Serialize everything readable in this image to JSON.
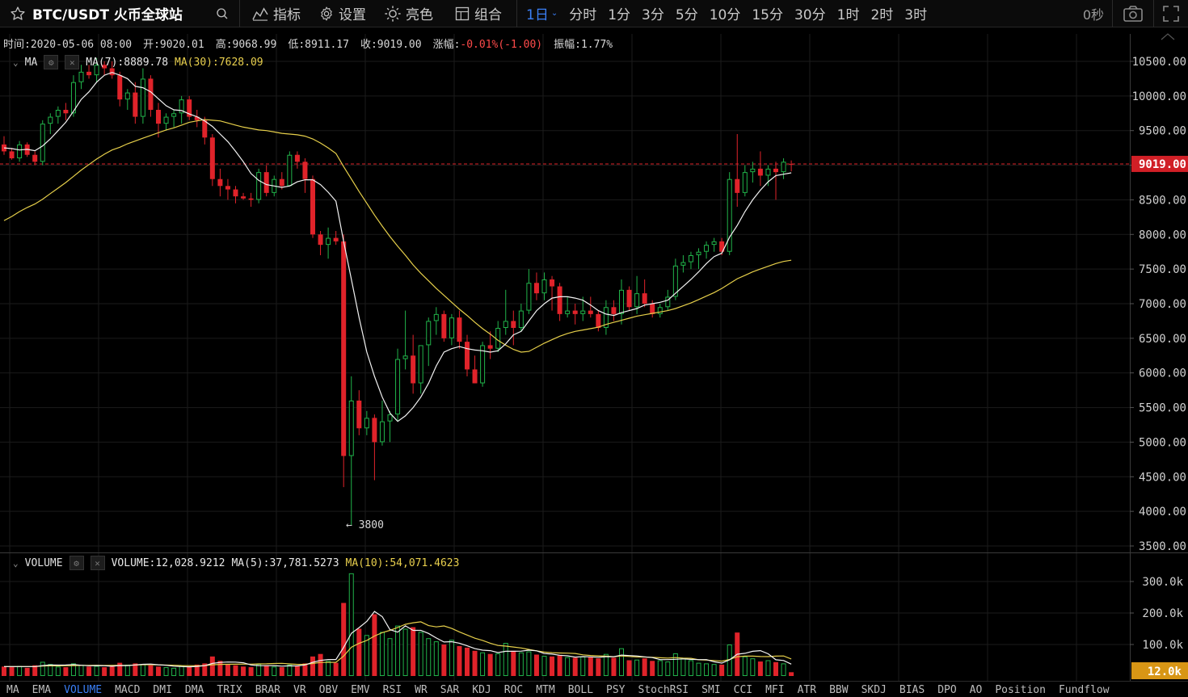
{
  "toolbar": {
    "symbol": "BTC/USDT 火币全球站",
    "indicators_label": "指标",
    "settings_label": "设置",
    "theme_label": "亮色",
    "combo_label": "组合",
    "intervals": [
      "1日",
      "分时",
      "1分",
      "3分",
      "5分",
      "10分",
      "15分",
      "30分",
      "1时",
      "2时",
      "3时"
    ],
    "active_interval": "1日",
    "seconds": "0秒"
  },
  "ohlc": {
    "time": "时间:2020-05-06 08:00",
    "open": "开:9020.01",
    "high": "高:9068.99",
    "low": "低:8911.17",
    "close": "收:9019.00",
    "change_label": "涨幅:",
    "change_value": "-0.01%(-1.00)",
    "amplitude": "振幅:1.77%"
  },
  "ma_legend": {
    "name": "MA",
    "ma7": "MA(7):8889.78",
    "ma30": "MA(30):7628.09"
  },
  "volume_legend": {
    "name": "VOLUME",
    "volume": "VOLUME:12,028.9212",
    "ma5": "MA(5):37,781.5273",
    "ma10": "MA(10):54,071.4623"
  },
  "price_axis": {
    "labels": [
      "10500.00",
      "10000.00",
      "9500.00",
      "9000.00",
      "8500.00",
      "8000.00",
      "7500.00",
      "7000.00",
      "6500.00",
      "6000.00",
      "5500.00",
      "5000.00",
      "4500.00",
      "4000.00",
      "3500.00"
    ],
    "last_price": "9019.00",
    "low_marker": "← 3800"
  },
  "volume_axis": {
    "labels": [
      "300.0k",
      "200.0k",
      "100.0k"
    ],
    "last_volume": "12.0k"
  },
  "indicators": [
    "MA",
    "EMA",
    "VOLUME",
    "MACD",
    "DMI",
    "DMA",
    "TRIX",
    "BRAR",
    "VR",
    "OBV",
    "EMV",
    "RSI",
    "WR",
    "SAR",
    "KDJ",
    "ROC",
    "MTM",
    "BOLL",
    "PSY",
    "StochRSI",
    "SMI",
    "CCI",
    "MFI",
    "ATR",
    "BBW",
    "SKDJ",
    "BIAS",
    "DPO",
    "AO",
    "Position",
    "Fundflow"
  ],
  "active_indicator": "VOLUME",
  "colors": {
    "up": "#21b34a",
    "down": "#e0232a",
    "ma7": "#f2f2f2",
    "ma30": "#e6cf4a",
    "accent": "#3a7ff6",
    "price_tag": "#d11f26",
    "volume_tag": "#d89615"
  },
  "chart_data": {
    "type": "candlestick",
    "y_range": [
      3500,
      10700
    ],
    "volume_range": [
      0,
      340000
    ],
    "last_price": 9019.0,
    "candles": [
      [
        9300,
        9420,
        9150,
        9200
      ],
      [
        9200,
        9250,
        9080,
        9100
      ],
      [
        9100,
        9350,
        9050,
        9300
      ],
      [
        9300,
        9330,
        9120,
        9150
      ],
      [
        9150,
        9200,
        9000,
        9050
      ],
      [
        9050,
        9650,
        9000,
        9600
      ],
      [
        9600,
        9750,
        9450,
        9700
      ],
      [
        9700,
        9850,
        9600,
        9800
      ],
      [
        9800,
        9900,
        9650,
        9750
      ],
      [
        9750,
        10300,
        9700,
        10200
      ],
      [
        10200,
        10450,
        10100,
        10350
      ],
      [
        10350,
        10450,
        10250,
        10300
      ],
      [
        10300,
        10550,
        10200,
        10450
      ],
      [
        10450,
        10500,
        10300,
        10400
      ],
      [
        10400,
        10500,
        10250,
        10300
      ],
      [
        10300,
        10350,
        9850,
        9950
      ],
      [
        9950,
        10100,
        9800,
        10050
      ],
      [
        10050,
        10200,
        9600,
        9700
      ],
      [
        9700,
        10400,
        9600,
        10250
      ],
      [
        10250,
        10300,
        9700,
        9800
      ],
      [
        9800,
        9900,
        9400,
        9600
      ],
      [
        9600,
        9750,
        9500,
        9700
      ],
      [
        9700,
        9800,
        9550,
        9750
      ],
      [
        9750,
        10000,
        9600,
        9950
      ],
      [
        9950,
        10000,
        9650,
        9700
      ],
      [
        9700,
        9800,
        9550,
        9650
      ],
      [
        9650,
        9700,
        9300,
        9400
      ],
      [
        9400,
        9450,
        8700,
        8800
      ],
      [
        8800,
        8950,
        8550,
        8700
      ],
      [
        8700,
        8800,
        8500,
        8650
      ],
      [
        8650,
        8700,
        8450,
        8550
      ],
      [
        8550,
        8600,
        8500,
        8520
      ],
      [
        8520,
        8600,
        8400,
        8500
      ],
      [
        8500,
        8950,
        8450,
        8900
      ],
      [
        8900,
        9000,
        8550,
        8600
      ],
      [
        8600,
        8850,
        8550,
        8800
      ],
      [
        8800,
        8900,
        8650,
        8700
      ],
      [
        8700,
        9200,
        8700,
        9150
      ],
      [
        9150,
        9200,
        8950,
        9050
      ],
      [
        9050,
        9100,
        8600,
        8800
      ],
      [
        8800,
        8850,
        7950,
        8000
      ],
      [
        8000,
        8050,
        7700,
        7850
      ],
      [
        7850,
        8100,
        7650,
        7950
      ],
      [
        7950,
        8050,
        7850,
        7900
      ],
      [
        7900,
        8000,
        4350,
        4800
      ],
      [
        4800,
        5950,
        3800,
        5600
      ],
      [
        5600,
        5750,
        5100,
        5200
      ],
      [
        5200,
        5450,
        5100,
        5350
      ],
      [
        5350,
        5400,
        4450,
        5000
      ],
      [
        5000,
        5600,
        4950,
        5300
      ],
      [
        5300,
        5450,
        5000,
        5400
      ],
      [
        5400,
        6350,
        5300,
        6200
      ],
      [
        6200,
        6900,
        6050,
        6250
      ],
      [
        6250,
        6550,
        5700,
        5850
      ],
      [
        5850,
        6350,
        5700,
        6400
      ],
      [
        6400,
        6800,
        6100,
        6750
      ],
      [
        6750,
        6950,
        6550,
        6850
      ],
      [
        6850,
        6900,
        6450,
        6500
      ],
      [
        6500,
        6850,
        6400,
        6800
      ],
      [
        6800,
        6900,
        6350,
        6450
      ],
      [
        6450,
        6550,
        5950,
        6050
      ],
      [
        6050,
        6250,
        5850,
        5850
      ],
      [
        5850,
        6450,
        5800,
        6400
      ],
      [
        6400,
        6600,
        6200,
        6350
      ],
      [
        6350,
        6750,
        6300,
        6650
      ],
      [
        6650,
        7200,
        6550,
        6750
      ],
      [
        6750,
        6900,
        6400,
        6650
      ],
      [
        6650,
        7000,
        6600,
        6900
      ],
      [
        6900,
        7500,
        6850,
        7300
      ],
      [
        7300,
        7450,
        7050,
        7150
      ],
      [
        7150,
        7450,
        7050,
        7350
      ],
      [
        7350,
        7400,
        6900,
        7250
      ],
      [
        7250,
        7300,
        6750,
        6850
      ],
      [
        6850,
        7100,
        6800,
        6900
      ],
      [
        6900,
        7000,
        6700,
        6850
      ],
      [
        6850,
        7100,
        6750,
        6900
      ],
      [
        6900,
        7100,
        6800,
        6850
      ],
      [
        6850,
        6900,
        6600,
        6650
      ],
      [
        6650,
        7050,
        6550,
        6950
      ],
      [
        6950,
        7050,
        6750,
        6850
      ],
      [
        6850,
        7350,
        6700,
        7200
      ],
      [
        7200,
        7250,
        6900,
        6950
      ],
      [
        6950,
        7400,
        6850,
        7150
      ],
      [
        7150,
        7350,
        6950,
        7000
      ],
      [
        7000,
        7050,
        6800,
        6850
      ],
      [
        6850,
        7000,
        6800,
        6950
      ],
      [
        6950,
        7200,
        6900,
        7100
      ],
      [
        7100,
        7650,
        7050,
        7550
      ],
      [
        7550,
        7700,
        7450,
        7600
      ],
      [
        7600,
        7750,
        7500,
        7700
      ],
      [
        7700,
        7800,
        7500,
        7750
      ],
      [
        7750,
        7900,
        7650,
        7850
      ],
      [
        7850,
        7950,
        7750,
        7900
      ],
      [
        7900,
        7950,
        7700,
        7750
      ],
      [
        7750,
        8900,
        7700,
        8800
      ],
      [
        8800,
        9450,
        8400,
        8600
      ],
      [
        8600,
        9000,
        8550,
        8900
      ],
      [
        8900,
        9050,
        8750,
        8950
      ],
      [
        8950,
        9200,
        8700,
        8850
      ],
      [
        8850,
        9000,
        8700,
        8950
      ],
      [
        8950,
        9050,
        8500,
        8900
      ],
      [
        8900,
        9100,
        8800,
        9050
      ],
      [
        9020.01,
        9068.99,
        8911.17,
        9019.0
      ]
    ],
    "volumes": [
      30000,
      28000,
      32000,
      26000,
      34000,
      45000,
      38000,
      30000,
      28000,
      40000,
      35000,
      30000,
      32000,
      28000,
      30000,
      42000,
      36000,
      40000,
      38000,
      34000,
      30000,
      28000,
      26000,
      32000,
      30000,
      36000,
      40000,
      62000,
      48000,
      36000,
      34000,
      30000,
      28000,
      38000,
      34000,
      30000,
      28000,
      36000,
      32000,
      40000,
      62000,
      70000,
      48000,
      42000,
      232000,
      326000,
      150000,
      130000,
      196000,
      140000,
      120000,
      160000,
      150000,
      155000,
      140000,
      120000,
      110000,
      100000,
      115000,
      95000,
      90000,
      80000,
      75000,
      70000,
      72000,
      105000,
      80000,
      75000,
      78000,
      68000,
      64000,
      62000,
      66000,
      60000,
      58000,
      62000,
      60000,
      56000,
      70000,
      58000,
      88000,
      50000,
      52000,
      56000,
      48000,
      50000,
      46000,
      72000,
      56000,
      50000,
      42000,
      40000,
      38000,
      36000,
      100000,
      138000,
      62000,
      56000,
      46000,
      50000,
      44000,
      40000,
      12000
    ],
    "ma7": [
      9250,
      9240,
      9220,
      9230,
      9210,
      9280,
      9380,
      9500,
      9620,
      9780,
      9950,
      10060,
      10200,
      10300,
      10340,
      10300,
      10250,
      10140,
      10120,
      10060,
      9960,
      9860,
      9800,
      9790,
      9740,
      9700,
      9640,
      9560,
      9450,
      9340,
      9200,
      9050,
      8880,
      8780,
      8720,
      8700,
      8680,
      8700,
      8760,
      8790,
      8790,
      8720,
      8610,
      8480,
      7900,
      7350,
      6800,
      6300,
      5950,
      5650,
      5420,
      5300,
      5380,
      5500,
      5650,
      5850,
      6100,
      6300,
      6350,
      6380,
      6350,
      6330,
      6320,
      6300,
      6320,
      6420,
      6550,
      6600,
      6750,
      6900,
      7000,
      7080,
      7100,
      7100,
      7080,
      7050,
      6980,
      6900,
      6850,
      6830,
      6870,
      6900,
      6930,
      6980,
      7000,
      7020,
      7050,
      7150,
      7250,
      7350,
      7460,
      7580,
      7680,
      7730,
      7960,
      8130,
      8330,
      8500,
      8640,
      8760,
      8850,
      8870,
      8889.78
    ],
    "ma30": [
      8200,
      8260,
      8330,
      8390,
      8440,
      8510,
      8590,
      8670,
      8750,
      8840,
      8930,
      9010,
      9090,
      9160,
      9220,
      9260,
      9310,
      9350,
      9390,
      9430,
      9470,
      9510,
      9540,
      9580,
      9620,
      9640,
      9660,
      9650,
      9640,
      9610,
      9580,
      9550,
      9530,
      9510,
      9500,
      9480,
      9460,
      9450,
      9440,
      9420,
      9380,
      9320,
      9250,
      9170,
      8980,
      8800,
      8620,
      8450,
      8280,
      8120,
      7970,
      7830,
      7700,
      7560,
      7440,
      7330,
      7220,
      7120,
      7020,
      6920,
      6830,
      6730,
      6640,
      6560,
      6470,
      6400,
      6340,
      6300,
      6310,
      6370,
      6430,
      6480,
      6530,
      6570,
      6600,
      6620,
      6640,
      6660,
      6700,
      6730,
      6760,
      6790,
      6820,
      6840,
      6860,
      6880,
      6900,
      6930,
      6970,
      7010,
      7060,
      7110,
      7160,
      7220,
      7290,
      7360,
      7410,
      7460,
      7500,
      7540,
      7580,
      7610,
      7628.09
    ],
    "vol_ma5": [
      30000,
      30000,
      30000,
      30000,
      30000,
      33000,
      35000,
      34500,
      35000,
      36200,
      34200,
      32600,
      33000,
      32600,
      31000,
      33400,
      33200,
      35200,
      37200,
      38000,
      35600,
      34000,
      31200,
      30000,
      29200,
      30400,
      32800,
      40000,
      43200,
      44400,
      44000,
      42000,
      35200,
      33200,
      32800,
      33200,
      31200,
      32400,
      32000,
      35200,
      43600,
      49600,
      52400,
      52400,
      90800,
      135600,
      153600,
      173600,
      204800,
      188400,
      147200,
      139200,
      159200,
      145000,
      145000,
      135200,
      120800,
      108000,
      109000,
      104000,
      96000,
      87000,
      82000,
      80400,
      74400,
      78400,
      78400,
      79000,
      82000,
      80000,
      71400,
      69400,
      66000,
      64000,
      60000,
      61600,
      60800,
      59400,
      61400,
      61200,
      66400,
      64800,
      63600,
      60800,
      58400,
      52000,
      52000,
      53000,
      54400,
      52800,
      52000,
      52000,
      45200,
      41000,
      51200,
      69200,
      72000,
      78400,
      80400,
      70400,
      51600,
      49200,
      37781.5273
    ],
    "vol_ma10": [
      30000,
      30000,
      30000,
      30000,
      30000,
      31500,
      32500,
      32300,
      32500,
      33100,
      33600,
      33800,
      34200,
      33300,
      33500,
      33800,
      33800,
      34800,
      35800,
      36000,
      35300,
      34600,
      34000,
      33000,
      32700,
      32600,
      33000,
      35600,
      37000,
      37200,
      37400,
      37600,
      37800,
      38400,
      38800,
      39800,
      40200,
      38400,
      36800,
      37200,
      39800,
      43000,
      43000,
      43600,
      63400,
      91400,
      103600,
      113000,
      127000,
      137600,
      144800,
      153800,
      164000,
      169000,
      172000,
      160000,
      156000,
      159000,
      151000,
      140000,
      130000,
      120000,
      113000,
      104000,
      97000,
      95000,
      92000,
      89000,
      84300,
      80000,
      76000,
      74000,
      73000,
      72500,
      71500,
      67200,
      65000,
      63800,
      63000,
      61200,
      63600,
      62000,
      60600,
      60200,
      59200,
      58000,
      56800,
      58400,
      57000,
      56200,
      51600,
      50600,
      49200,
      47200,
      52400,
      61200,
      63000,
      63000,
      61800,
      61600,
      63200,
      63600,
      54071.4623
    ]
  }
}
